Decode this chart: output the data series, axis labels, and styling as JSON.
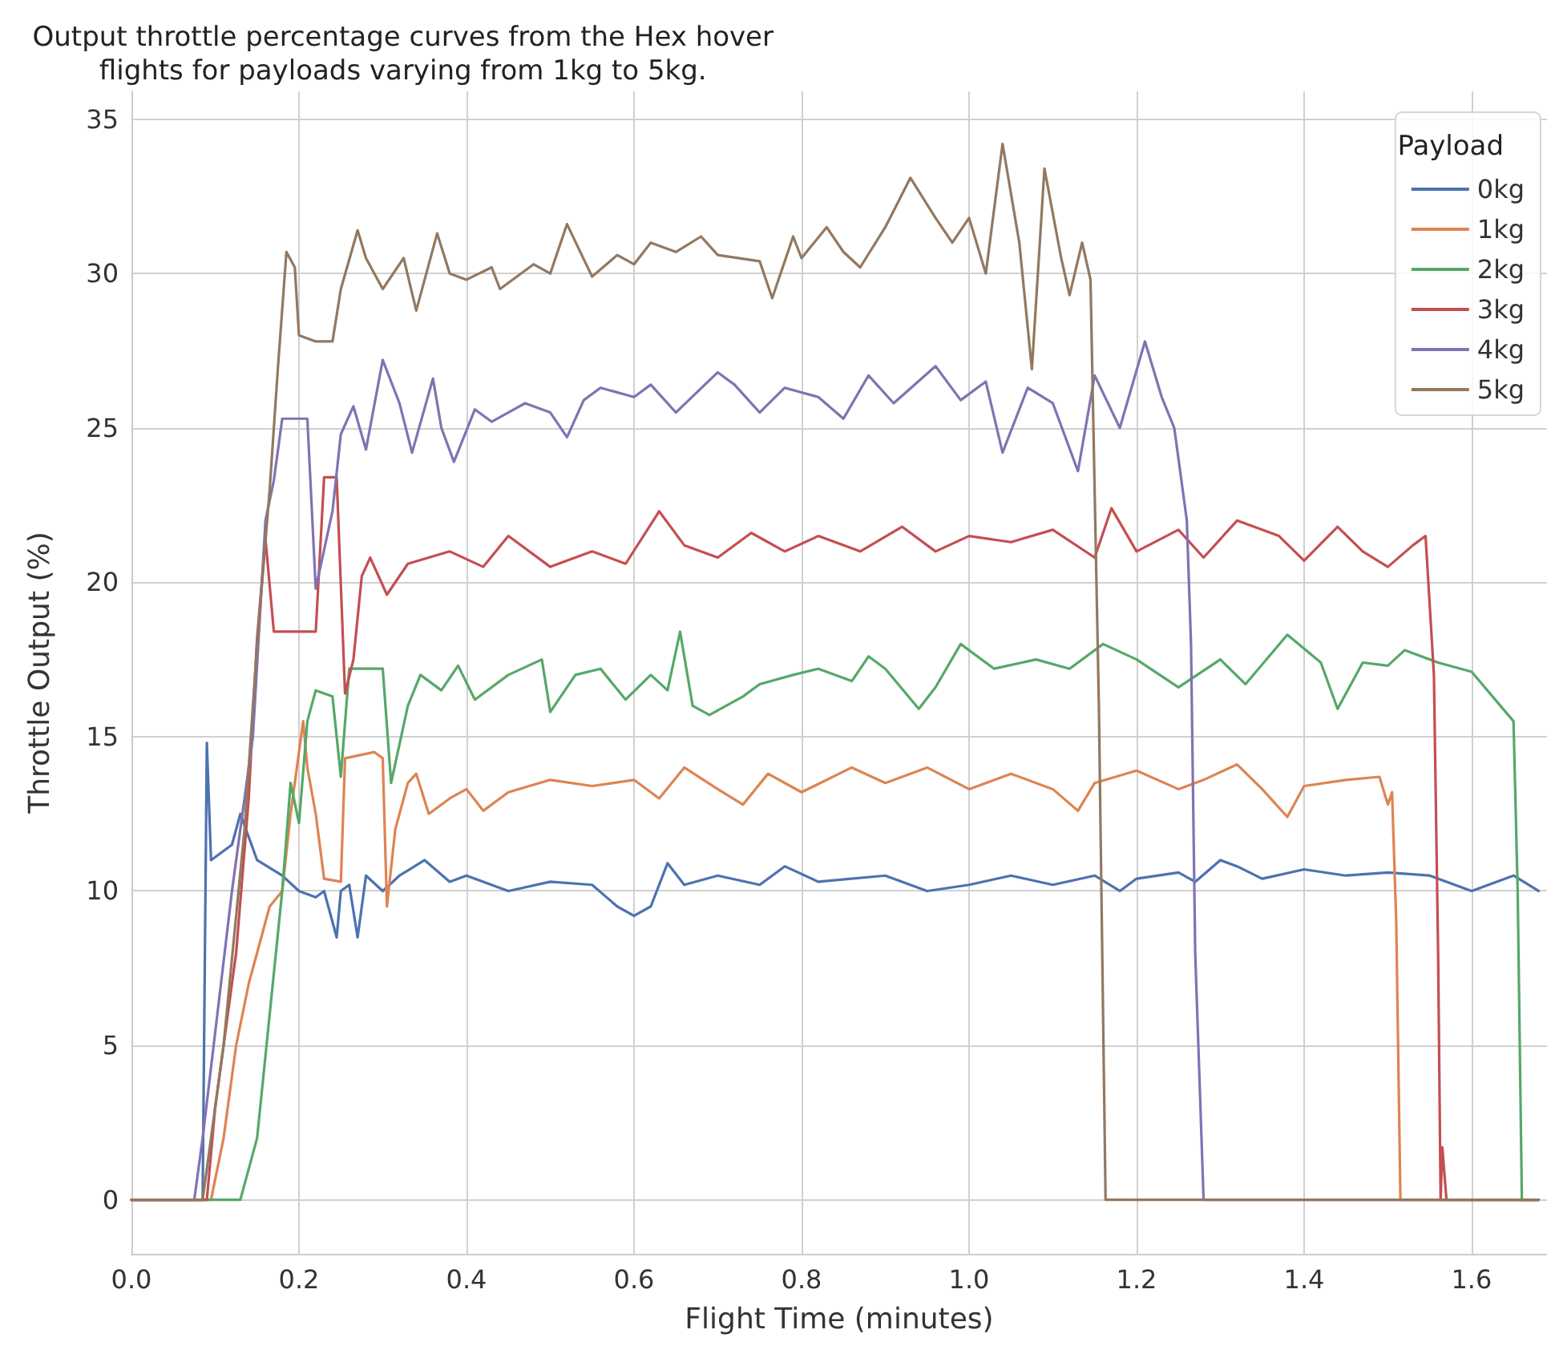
{
  "chart_data": {
    "type": "line",
    "title": "Output throttle percentage curves from the Hex hover\nflights for payloads varying from 1kg to 5kg.",
    "xlabel": "Flight Time (minutes)",
    "ylabel": "Throttle Output (%)",
    "legend_title": "Payload",
    "legend": "top right",
    "grid": true,
    "marker": "none",
    "line_style": "solid",
    "xlim": [
      0,
      1.69
    ],
    "ylim": [
      -1.75,
      35.9
    ],
    "xticks": [
      {
        "value": 0,
        "label": "0.0"
      },
      0.2,
      0.4,
      0.6,
      0.8,
      {
        "value": 1,
        "label": "1.0"
      },
      1.2,
      1.4,
      1.6
    ],
    "yticks": [
      0,
      5,
      10,
      15,
      20,
      25,
      30,
      35
    ],
    "series": [
      {
        "name": "0kg",
        "color": "#4c72b0",
        "x": [
          0,
          0.085,
          0.09,
          0.095,
          0.12,
          0.13,
          0.15,
          0.18,
          0.2,
          0.22,
          0.23,
          0.245,
          0.25,
          0.26,
          0.27,
          0.28,
          0.3,
          0.32,
          0.35,
          0.38,
          0.4,
          0.45,
          0.5,
          0.55,
          0.58,
          0.6,
          0.62,
          0.64,
          0.66,
          0.7,
          0.75,
          0.78,
          0.82,
          0.9,
          0.95,
          1.0,
          1.05,
          1.1,
          1.15,
          1.18,
          1.2,
          1.25,
          1.27,
          1.3,
          1.32,
          1.35,
          1.4,
          1.45,
          1.5,
          1.55,
          1.6,
          1.65,
          1.68
        ],
        "values": [
          0,
          0,
          14.8,
          11,
          11.5,
          12.5,
          11,
          10.5,
          10,
          9.8,
          10,
          8.5,
          10,
          10.2,
          8.5,
          10.5,
          10,
          10.5,
          11,
          10.3,
          10.5,
          10,
          10.3,
          10.2,
          9.5,
          9.2,
          9.5,
          10.9,
          10.2,
          10.5,
          10.2,
          10.8,
          10.3,
          10.5,
          10,
          10.2,
          10.5,
          10.2,
          10.5,
          10,
          10.4,
          10.6,
          10.3,
          11,
          10.8,
          10.4,
          10.7,
          10.5,
          10.6,
          10.5,
          10,
          10.5,
          10
        ]
      },
      {
        "name": "1kg",
        "color": "#dd8452",
        "x": [
          0,
          0.095,
          0.11,
          0.125,
          0.14,
          0.165,
          0.18,
          0.19,
          0.205,
          0.21,
          0.22,
          0.23,
          0.25,
          0.255,
          0.29,
          0.3,
          0.305,
          0.315,
          0.33,
          0.34,
          0.355,
          0.38,
          0.4,
          0.42,
          0.45,
          0.5,
          0.55,
          0.6,
          0.63,
          0.66,
          0.7,
          0.73,
          0.76,
          0.8,
          0.86,
          0.9,
          0.95,
          1.0,
          1.05,
          1.1,
          1.13,
          1.15,
          1.2,
          1.25,
          1.28,
          1.32,
          1.35,
          1.38,
          1.4,
          1.45,
          1.49,
          1.5,
          1.505,
          1.51,
          1.515,
          1.68
        ],
        "values": [
          0,
          0,
          2,
          5,
          7,
          9.5,
          10,
          12.5,
          15.5,
          14,
          12.5,
          10.4,
          10.3,
          14.3,
          14.5,
          14.3,
          9.5,
          12,
          13.5,
          13.8,
          12.5,
          13,
          13.3,
          12.6,
          13.2,
          13.6,
          13.4,
          13.6,
          13,
          14,
          13.3,
          12.8,
          13.8,
          13.2,
          14,
          13.5,
          14,
          13.3,
          13.8,
          13.3,
          12.6,
          13.5,
          13.9,
          13.3,
          13.6,
          14.1,
          13.3,
          12.4,
          13.4,
          13.6,
          13.7,
          12.8,
          13.2,
          9,
          0,
          0
        ]
      },
      {
        "name": "2kg",
        "color": "#55a868",
        "x": [
          0,
          0.13,
          0.15,
          0.165,
          0.18,
          0.19,
          0.2,
          0.21,
          0.22,
          0.24,
          0.25,
          0.26,
          0.3,
          0.31,
          0.33,
          0.345,
          0.37,
          0.39,
          0.41,
          0.45,
          0.49,
          0.5,
          0.53,
          0.56,
          0.59,
          0.62,
          0.64,
          0.655,
          0.67,
          0.69,
          0.73,
          0.75,
          0.79,
          0.82,
          0.86,
          0.88,
          0.9,
          0.94,
          0.96,
          0.99,
          1.03,
          1.08,
          1.12,
          1.16,
          1.2,
          1.25,
          1.3,
          1.33,
          1.38,
          1.42,
          1.44,
          1.47,
          1.5,
          1.52,
          1.56,
          1.6,
          1.65,
          1.655,
          1.66,
          1.68
        ],
        "values": [
          0,
          0,
          2,
          6,
          10,
          13.5,
          12.2,
          15.5,
          16.5,
          16.3,
          13.7,
          17.2,
          17.2,
          13.5,
          16,
          17,
          16.5,
          17.3,
          16.2,
          17,
          17.5,
          15.8,
          17,
          17.2,
          16.2,
          17,
          16.5,
          18.4,
          16,
          15.7,
          16.3,
          16.7,
          17,
          17.2,
          16.8,
          17.6,
          17.2,
          15.9,
          16.6,
          18,
          17.2,
          17.5,
          17.2,
          18,
          17.5,
          16.6,
          17.5,
          16.7,
          18.3,
          17.4,
          15.9,
          17.4,
          17.3,
          17.8,
          17.4,
          17.1,
          15.5,
          10,
          0,
          0
        ]
      },
      {
        "name": "3kg",
        "color": "#c44e52",
        "x": [
          0,
          0.09,
          0.1,
          0.125,
          0.14,
          0.15,
          0.16,
          0.17,
          0.22,
          0.23,
          0.245,
          0.255,
          0.265,
          0.275,
          0.285,
          0.305,
          0.33,
          0.38,
          0.42,
          0.45,
          0.5,
          0.55,
          0.59,
          0.63,
          0.66,
          0.7,
          0.74,
          0.78,
          0.82,
          0.87,
          0.92,
          0.96,
          1.0,
          1.05,
          1.1,
          1.15,
          1.17,
          1.2,
          1.25,
          1.28,
          1.32,
          1.37,
          1.4,
          1.44,
          1.47,
          1.5,
          1.53,
          1.545,
          1.555,
          1.56,
          1.563,
          1.565,
          1.57,
          1.68
        ],
        "values": [
          0,
          0,
          3,
          8,
          13,
          18.2,
          21.4,
          18.4,
          18.4,
          23.4,
          23.4,
          16.4,
          17.5,
          20.2,
          20.8,
          19.6,
          20.6,
          21,
          20.5,
          21.5,
          20.5,
          21,
          20.6,
          22.3,
          21.2,
          20.8,
          21.6,
          21,
          21.5,
          21,
          21.8,
          21,
          21.5,
          21.3,
          21.7,
          20.8,
          22.4,
          21,
          21.7,
          20.8,
          22,
          21.5,
          20.7,
          21.8,
          21,
          20.5,
          21.2,
          21.5,
          17,
          8,
          0,
          1.7,
          0,
          0
        ]
      },
      {
        "name": "4kg",
        "color": "#8172b3",
        "x": [
          0,
          0.075,
          0.085,
          0.12,
          0.145,
          0.16,
          0.17,
          0.18,
          0.21,
          0.22,
          0.24,
          0.25,
          0.265,
          0.28,
          0.3,
          0.32,
          0.335,
          0.36,
          0.37,
          0.385,
          0.41,
          0.43,
          0.47,
          0.5,
          0.52,
          0.54,
          0.56,
          0.6,
          0.62,
          0.65,
          0.7,
          0.72,
          0.75,
          0.78,
          0.82,
          0.85,
          0.88,
          0.91,
          0.96,
          0.99,
          1.02,
          1.04,
          1.07,
          1.1,
          1.13,
          1.15,
          1.18,
          1.21,
          1.23,
          1.245,
          1.26,
          1.265,
          1.27,
          1.28,
          1.68
        ],
        "values": [
          0,
          0,
          2,
          10,
          15,
          22,
          23.3,
          25.3,
          25.3,
          19.8,
          22.3,
          24.8,
          25.7,
          24.3,
          27.2,
          25.8,
          24.2,
          26.6,
          25,
          23.9,
          25.6,
          25.2,
          25.8,
          25.5,
          24.7,
          25.9,
          26.3,
          26,
          26.4,
          25.5,
          26.8,
          26.4,
          25.5,
          26.3,
          26,
          25.3,
          26.7,
          25.8,
          27,
          25.9,
          26.5,
          24.2,
          26.3,
          25.8,
          23.6,
          26.7,
          25,
          27.8,
          26,
          25,
          22,
          18,
          8,
          0,
          0
        ]
      },
      {
        "name": "5kg",
        "color": "#937860",
        "x": [
          0,
          0.085,
          0.11,
          0.135,
          0.15,
          0.165,
          0.175,
          0.185,
          0.195,
          0.2,
          0.22,
          0.24,
          0.25,
          0.27,
          0.28,
          0.3,
          0.325,
          0.34,
          0.365,
          0.38,
          0.4,
          0.43,
          0.44,
          0.48,
          0.5,
          0.52,
          0.55,
          0.58,
          0.6,
          0.62,
          0.65,
          0.68,
          0.7,
          0.75,
          0.765,
          0.79,
          0.8,
          0.83,
          0.85,
          0.87,
          0.9,
          0.93,
          0.96,
          0.98,
          1.0,
          1.02,
          1.04,
          1.06,
          1.075,
          1.09,
          1.11,
          1.12,
          1.135,
          1.145,
          1.155,
          1.163,
          1.68
        ],
        "values": [
          0,
          0,
          5,
          12,
          18,
          23,
          27,
          30.7,
          30.2,
          28,
          27.8,
          27.8,
          29.5,
          31.4,
          30.5,
          29.5,
          30.5,
          28.8,
          31.3,
          30,
          29.8,
          30.2,
          29.5,
          30.3,
          30,
          31.6,
          29.9,
          30.6,
          30.3,
          31,
          30.7,
          31.2,
          30.6,
          30.4,
          29.2,
          31.2,
          30.5,
          31.5,
          30.7,
          30.2,
          31.5,
          33.1,
          31.8,
          31,
          31.8,
          30,
          34.2,
          31,
          26.9,
          33.4,
          30.5,
          29.3,
          31,
          29.8,
          16,
          0,
          0
        ]
      }
    ]
  }
}
